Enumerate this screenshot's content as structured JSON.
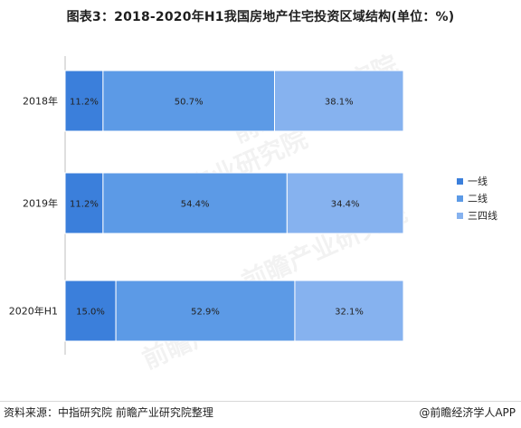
{
  "title": "图表3：2018-2020年H1我国房地产住宅投资区域结构(单位：%)",
  "source": "资料来源：中指研究院 前瞻产业研究院整理",
  "brand": "@前瞻经济学人APP",
  "watermark": "前瞻产业研究院",
  "colors": {
    "tier1": "#3b7fdb",
    "tier2": "#5c9ae6",
    "tier3": "#86b2ef",
    "label": "#222222",
    "axis": "#bfbfbf"
  },
  "chart_data": {
    "type": "bar",
    "orientation": "horizontal",
    "stacked": true,
    "categories": [
      "2018年",
      "2019年",
      "2020年H1"
    ],
    "series": [
      {
        "name": "一线",
        "values": [
          11.2,
          11.2,
          15.0
        ],
        "labels": [
          "11.2%",
          "11.2%",
          "15.0%"
        ]
      },
      {
        "name": "二线",
        "values": [
          50.7,
          54.4,
          52.9
        ],
        "labels": [
          "50.7%",
          "54.4%",
          "52.9%"
        ]
      },
      {
        "name": "三四线",
        "values": [
          38.1,
          34.4,
          32.1
        ],
        "labels": [
          "38.1%",
          "34.4%",
          "32.1%"
        ]
      }
    ],
    "xlim": [
      0,
      100
    ],
    "legend": "right",
    "grid": false
  }
}
